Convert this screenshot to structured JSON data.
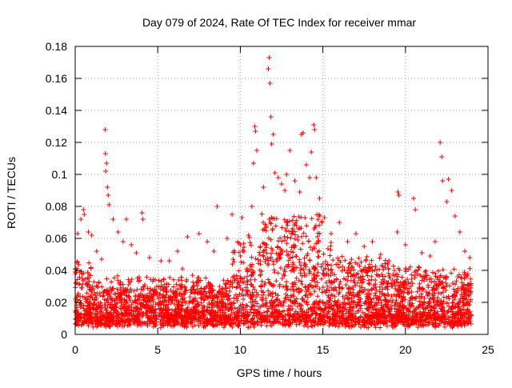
{
  "chart_data": {
    "type": "scatter",
    "title": "Day 079 of 2024, Rate Of TEC Index for receiver mmar",
    "xlabel": "GPS time / hours",
    "ylabel": "ROTI / TECUs",
    "xlim": [
      0,
      25
    ],
    "ylim": [
      0,
      0.18
    ],
    "xticks": [
      0,
      5,
      10,
      15,
      20,
      25
    ],
    "xtick_labels": [
      "0",
      "5",
      "10",
      "15",
      "20",
      "25"
    ],
    "yticks": [
      0,
      0.02,
      0.04,
      0.06,
      0.08,
      0.1,
      0.12,
      0.14,
      0.16,
      0.18
    ],
    "ytick_labels": [
      "0",
      "0.02",
      "0.04",
      "0.06",
      "0.08",
      "0.1",
      "0.12",
      "0.14",
      "0.16",
      "0.18"
    ],
    "grid": true,
    "legend": "none",
    "marker": "plus",
    "color": "#ff0000",
    "series": [
      {
        "values": [
          [
            0.1,
            0.045
          ],
          [
            0.15,
            0.063
          ],
          [
            0.35,
            0.072
          ],
          [
            0.5,
            0.078
          ],
          [
            0.55,
            0.075
          ],
          [
            0.8,
            0.064
          ],
          [
            1.0,
            0.062
          ],
          [
            1.3,
            0.052
          ],
          [
            1.6,
            0.047
          ],
          [
            1.82,
            0.128
          ],
          [
            1.83,
            0.113
          ],
          [
            1.85,
            0.102
          ],
          [
            1.9,
            0.107
          ],
          [
            1.95,
            0.092
          ],
          [
            2.0,
            0.087
          ],
          [
            2.05,
            0.081
          ],
          [
            2.3,
            0.072
          ],
          [
            2.6,
            0.064
          ],
          [
            2.9,
            0.058
          ],
          [
            3.1,
            0.072
          ],
          [
            3.4,
            0.056
          ],
          [
            3.7,
            0.051
          ],
          [
            4.05,
            0.076
          ],
          [
            4.1,
            0.072
          ],
          [
            4.5,
            0.048
          ],
          [
            5.2,
            0.046
          ],
          [
            5.7,
            0.046
          ],
          [
            6.2,
            0.052
          ],
          [
            6.5,
            0.041
          ],
          [
            6.8,
            0.061
          ],
          [
            7.5,
            0.063
          ],
          [
            8.0,
            0.058
          ],
          [
            8.4,
            0.052
          ],
          [
            8.6,
            0.08
          ],
          [
            9.2,
            0.06
          ],
          [
            9.5,
            0.075
          ],
          [
            10.1,
            0.073
          ],
          [
            10.5,
            0.062
          ],
          [
            10.7,
            0.08
          ],
          [
            10.8,
            0.107
          ],
          [
            10.88,
            0.13
          ],
          [
            10.92,
            0.127
          ],
          [
            11.0,
            0.115
          ],
          [
            11.4,
            0.092
          ],
          [
            11.7,
            0.166
          ],
          [
            11.75,
            0.173
          ],
          [
            11.8,
            0.157
          ],
          [
            11.85,
            0.136
          ],
          [
            11.9,
            0.119
          ],
          [
            12.0,
            0.125
          ],
          [
            12.1,
            0.101
          ],
          [
            12.3,
            0.098
          ],
          [
            12.5,
            0.094
          ],
          [
            12.7,
            0.09
          ],
          [
            12.8,
            0.1
          ],
          [
            13.0,
            0.115
          ],
          [
            13.3,
            0.096
          ],
          [
            13.6,
            0.089
          ],
          [
            13.7,
            0.125
          ],
          [
            13.8,
            0.126
          ],
          [
            14.0,
            0.106
          ],
          [
            14.2,
            0.098
          ],
          [
            14.3,
            0.114
          ],
          [
            14.45,
            0.131
          ],
          [
            14.5,
            0.128
          ],
          [
            14.6,
            0.098
          ],
          [
            14.8,
            0.085
          ],
          [
            15.1,
            0.073
          ],
          [
            15.5,
            0.063
          ],
          [
            16.0,
            0.07
          ],
          [
            16.5,
            0.058
          ],
          [
            17.0,
            0.063
          ],
          [
            17.5,
            0.055
          ],
          [
            18.0,
            0.058
          ],
          [
            18.5,
            0.05
          ],
          [
            19.0,
            0.046
          ],
          [
            19.5,
            0.064
          ],
          [
            19.55,
            0.089
          ],
          [
            19.6,
            0.087
          ],
          [
            20.0,
            0.056
          ],
          [
            20.5,
            0.085
          ],
          [
            20.6,
            0.078
          ],
          [
            21.0,
            0.051
          ],
          [
            21.5,
            0.049
          ],
          [
            21.8,
            0.058
          ],
          [
            22.1,
            0.12
          ],
          [
            22.2,
            0.111
          ],
          [
            22.25,
            0.096
          ],
          [
            22.5,
            0.083
          ],
          [
            22.6,
            0.097
          ],
          [
            22.8,
            0.09
          ],
          [
            23.0,
            0.074
          ],
          [
            23.3,
            0.064
          ],
          [
            23.6,
            0.052
          ],
          [
            23.9,
            0.048
          ]
        ]
      }
    ]
  }
}
